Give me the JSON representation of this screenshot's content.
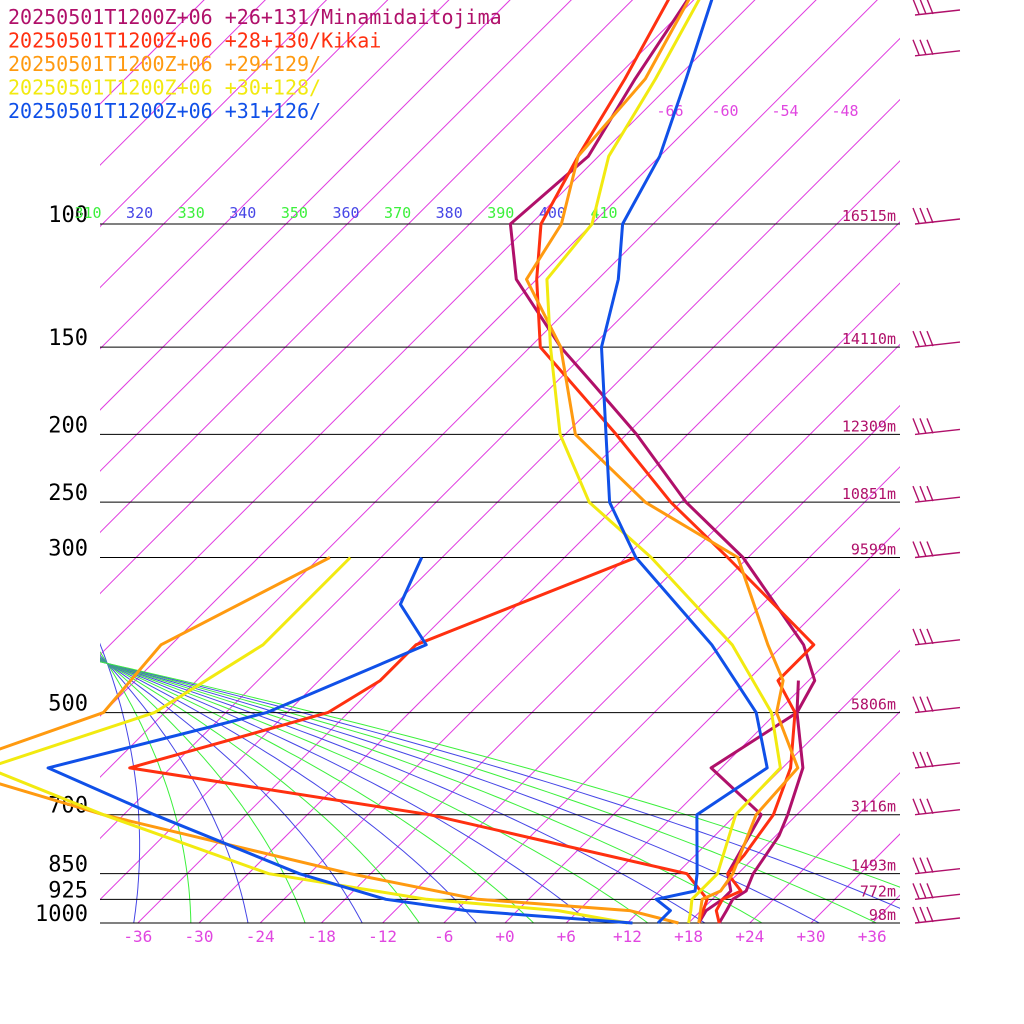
{
  "chart_data": {
    "type": "line",
    "title": "",
    "legend": [
      {
        "label": "20250501T1200Z+06 +26+131/Minamidaitojima",
        "color": "#b0106a"
      },
      {
        "label": "20250501T1200Z+06 +28+130/Kikai",
        "color": "#ff3010"
      },
      {
        "label": "20250501T1200Z+06 +29+129/",
        "color": "#ff9a10"
      },
      {
        "label": "20250501T1200Z+06 +30+128/",
        "color": "#f2ea10"
      },
      {
        "label": "20250501T1200Z+06 +31+126/",
        "color": "#1050e8"
      }
    ],
    "pressure_levels": [
      100,
      150,
      200,
      250,
      300,
      500,
      700,
      850,
      925,
      1000
    ],
    "pressure_labels": [
      "100",
      "150",
      "200",
      "250",
      "300",
      "500",
      "700",
      "850",
      "925",
      "1000"
    ],
    "height_labels": [
      {
        "p": 100,
        "text": "16515m"
      },
      {
        "p": 150,
        "text": "14110m"
      },
      {
        "p": 200,
        "text": "12309m"
      },
      {
        "p": 250,
        "text": "10851m"
      },
      {
        "p": 300,
        "text": "9599m"
      },
      {
        "p": 500,
        "text": "5806m"
      },
      {
        "p": 700,
        "text": "3116m"
      },
      {
        "p": 850,
        "text": "1493m"
      },
      {
        "p": 925,
        "text": "772m"
      },
      {
        "p": 1000,
        "text": "98m"
      }
    ],
    "x_ticks": [
      "-36",
      "-30",
      "-24",
      "-18",
      "-12",
      "-6",
      "+0",
      "+6",
      "+12",
      "+18",
      "+24",
      "+30",
      "+36"
    ],
    "top_isotherm_labels": [
      "-66",
      "-60",
      "-54",
      "-48"
    ],
    "theta_e_labels": [
      {
        "text": "310",
        "color": "#3cf03c"
      },
      {
        "text": "320",
        "color": "#4646e6"
      },
      {
        "text": "330",
        "color": "#3cf03c"
      },
      {
        "text": "340",
        "color": "#4646e6"
      },
      {
        "text": "350",
        "color": "#3cf03c"
      },
      {
        "text": "360",
        "color": "#4646e6"
      },
      {
        "text": "370",
        "color": "#3cf03c"
      },
      {
        "text": "380",
        "color": "#4646e6"
      },
      {
        "text": "390",
        "color": "#3cf03c"
      },
      {
        "text": "400",
        "color": "#4646e6"
      },
      {
        "text": "410",
        "color": "#3cf03c"
      }
    ],
    "xlim": [
      -40,
      40
    ],
    "series": [
      {
        "name": "20250501T1200Z+06 +26+131/Minamidaitojima",
        "color": "#b0106a",
        "profile_a": [
          {
            "p": 1000,
            "t": 21.0
          },
          {
            "p": 960,
            "t": 20.5
          },
          {
            "p": 925,
            "t": 20.0
          },
          {
            "p": 900,
            "t": 20.5
          },
          {
            "p": 850,
            "t": 19.5
          },
          {
            "p": 750,
            "t": 18.3
          },
          {
            "p": 700,
            "t": 17.1
          },
          {
            "p": 600,
            "t": 14.0
          },
          {
            "p": 500,
            "t": 8.0
          },
          {
            "p": 450,
            "t": 6.6
          },
          {
            "p": 400,
            "t": 2.0
          },
          {
            "p": 300,
            "t": -12.5
          },
          {
            "p": 250,
            "t": -23.5
          },
          {
            "p": 200,
            "t": -35.0
          },
          {
            "p": 170,
            "t": -44.0
          },
          {
            "p": 150,
            "t": -51.0
          },
          {
            "p": 120,
            "t": -62.0
          },
          {
            "p": 100,
            "t": -68.0
          },
          {
            "p": 80,
            "t": -67.0
          },
          {
            "p": 62,
            "t": -70.0
          },
          {
            "p": 46,
            "t": -73.0
          },
          {
            "p": 37,
            "t": -79.0
          }
        ],
        "profile_b": [
          {
            "p": 1000,
            "t": 19.0
          },
          {
            "p": 960,
            "t": 18.5
          },
          {
            "p": 925,
            "t": 19.0
          },
          {
            "p": 900,
            "t": 19.0
          },
          {
            "p": 850,
            "t": 17.0
          },
          {
            "p": 700,
            "t": 14.5
          },
          {
            "p": 600,
            "t": 5.0
          },
          {
            "p": 500,
            "t": 8.0
          },
          {
            "p": 450,
            "t": 5.0
          }
        ]
      },
      {
        "name": "20250501T1200Z+06 +28+130/Kikai",
        "color": "#ff3010",
        "profile_a": [
          {
            "p": 1000,
            "t": 21.0
          },
          {
            "p": 960,
            "t": 19.5
          },
          {
            "p": 925,
            "t": 19.0
          },
          {
            "p": 900,
            "t": 20.0
          },
          {
            "p": 850,
            "t": 17.0
          },
          {
            "p": 800,
            "t": 16.8
          },
          {
            "p": 700,
            "t": 15.7
          },
          {
            "p": 600,
            "t": 12.8
          },
          {
            "p": 500,
            "t": 7.8
          },
          {
            "p": 450,
            "t": 3.0
          },
          {
            "p": 400,
            "t": 3.0
          },
          {
            "p": 300,
            "t": -14.0
          },
          {
            "p": 250,
            "t": -25.0
          },
          {
            "p": 200,
            "t": -37.0
          },
          {
            "p": 150,
            "t": -53.0
          },
          {
            "p": 120,
            "t": -60.0
          },
          {
            "p": 100,
            "t": -65.0
          },
          {
            "p": 80,
            "t": -68.0
          },
          {
            "p": 62,
            "t": -71.0
          },
          {
            "p": 46,
            "t": -75.0
          },
          {
            "p": 37,
            "t": -80.0
          }
        ],
        "profile_b": [
          {
            "p": 1000,
            "t": 19.0
          },
          {
            "p": 925,
            "t": 17.5
          },
          {
            "p": 850,
            "t": 13.0
          },
          {
            "p": 700,
            "t": -18.0
          },
          {
            "p": 600,
            "t": -52.0
          },
          {
            "p": 500,
            "t": -38.0
          },
          {
            "p": 450,
            "t": -36.0
          },
          {
            "p": 400,
            "t": -36.0
          },
          {
            "p": 300,
            "t": -23.0
          }
        ]
      },
      {
        "name": "20250501T1200Z+06 +29+129/",
        "color": "#ff9a10",
        "profile_a": [
          {
            "p": 1000,
            "t": 19.0
          },
          {
            "p": 925,
            "t": 17.0
          },
          {
            "p": 900,
            "t": 18.0
          },
          {
            "p": 850,
            "t": 17.5
          },
          {
            "p": 700,
            "t": 14.0
          },
          {
            "p": 600,
            "t": 13.5
          },
          {
            "p": 500,
            "t": 6.0
          },
          {
            "p": 450,
            "t": 3.5
          },
          {
            "p": 400,
            "t": -1.5
          },
          {
            "p": 300,
            "t": -13.0
          },
          {
            "p": 250,
            "t": -27.5
          },
          {
            "p": 200,
            "t": -41.0
          },
          {
            "p": 150,
            "t": -51.0
          },
          {
            "p": 120,
            "t": -61.0
          },
          {
            "p": 100,
            "t": -63.0
          },
          {
            "p": 80,
            "t": -68.0
          },
          {
            "p": 62,
            "t": -69.0
          },
          {
            "p": 46,
            "t": -73.0
          },
          {
            "p": 37,
            "t": -79.0
          }
        ],
        "profile_b": [
          {
            "p": 1000,
            "t": 17.0
          },
          {
            "p": 960,
            "t": 11.0
          },
          {
            "p": 925,
            "t": -5.0
          },
          {
            "p": 850,
            "t": -20.0
          },
          {
            "p": 700,
            "t": -50.0
          },
          {
            "p": 600,
            "t": -70.0
          },
          {
            "p": 500,
            "t": -60.0
          },
          {
            "p": 400,
            "t": -61.0
          },
          {
            "p": 300,
            "t": -53.0
          }
        ]
      },
      {
        "name": "20250501T1200Z+06 +30+128/",
        "color": "#f2ea10",
        "profile_a": [
          {
            "p": 1000,
            "t": 18.0
          },
          {
            "p": 960,
            "t": 17.0
          },
          {
            "p": 925,
            "t": 16.0
          },
          {
            "p": 850,
            "t": 16.0
          },
          {
            "p": 700,
            "t": 12.0
          },
          {
            "p": 600,
            "t": 11.8
          },
          {
            "p": 500,
            "t": 5.5
          },
          {
            "p": 400,
            "t": -5.0
          },
          {
            "p": 300,
            "t": -21.5
          },
          {
            "p": 250,
            "t": -33.0
          },
          {
            "p": 200,
            "t": -42.5
          },
          {
            "p": 150,
            "t": -52.0
          },
          {
            "p": 120,
            "t": -59.0
          },
          {
            "p": 100,
            "t": -60.0
          },
          {
            "p": 80,
            "t": -65.0
          },
          {
            "p": 62,
            "t": -68.0
          },
          {
            "p": 46,
            "t": -72.0
          },
          {
            "p": 37,
            "t": -78.0
          }
        ],
        "profile_b": [
          {
            "p": 1000,
            "t": 12.0
          },
          {
            "p": 960,
            "t": 4.0
          },
          {
            "p": 925,
            "t": -10.0
          },
          {
            "p": 850,
            "t": -28.0
          },
          {
            "p": 700,
            "t": -50.0
          },
          {
            "p": 600,
            "t": -66.0
          },
          {
            "p": 500,
            "t": -55.0
          },
          {
            "p": 400,
            "t": -51.0
          },
          {
            "p": 300,
            "t": -51.0
          }
        ]
      },
      {
        "name": "20250501T1200Z+06 +31+126/",
        "color": "#1050e8",
        "profile_a": [
          {
            "p": 1000,
            "t": 15.0
          },
          {
            "p": 960,
            "t": 15.0
          },
          {
            "p": 925,
            "t": 12.5
          },
          {
            "p": 900,
            "t": 15.5
          },
          {
            "p": 850,
            "t": 14.0
          },
          {
            "p": 700,
            "t": 8.2
          },
          {
            "p": 600,
            "t": 10.5
          },
          {
            "p": 500,
            "t": 4.0
          },
          {
            "p": 400,
            "t": -7.0
          },
          {
            "p": 300,
            "t": -23.0
          },
          {
            "p": 250,
            "t": -31.0
          },
          {
            "p": 200,
            "t": -38.0
          },
          {
            "p": 150,
            "t": -47.0
          },
          {
            "p": 120,
            "t": -52.0
          },
          {
            "p": 100,
            "t": -57.0
          },
          {
            "p": 80,
            "t": -60.0
          },
          {
            "p": 62,
            "t": -65.0
          },
          {
            "p": 46,
            "t": -71.0
          },
          {
            "p": 37,
            "t": -78.0
          }
        ],
        "profile_b": [
          {
            "p": 1000,
            "t": 12.5
          },
          {
            "p": 960,
            "t": -5.0
          },
          {
            "p": 925,
            "t": -14.0
          },
          {
            "p": 850,
            "t": -25.0
          },
          {
            "p": 700,
            "t": -45.0
          },
          {
            "p": 600,
            "t": -60.0
          },
          {
            "p": 500,
            "t": -44.0
          },
          {
            "p": 400,
            "t": -35.0
          },
          {
            "p": 350,
            "t": -41.5
          },
          {
            "p": 300,
            "t": -44.0
          }
        ]
      }
    ],
    "wind_barb_levels": [
      46,
      80,
      100,
      150,
      200,
      250,
      300,
      400,
      500,
      600,
      700,
      850,
      925,
      1000
    ]
  }
}
